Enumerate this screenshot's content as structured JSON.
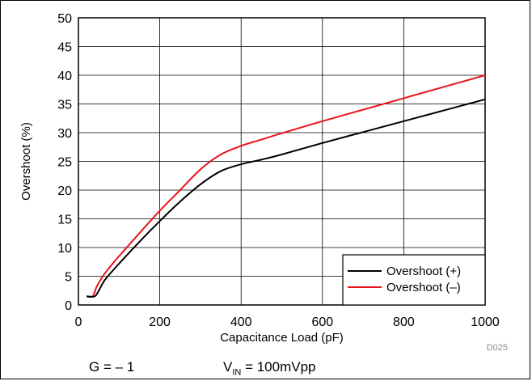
{
  "chart_data": {
    "type": "line",
    "xlabel": "Capacitance Load (pF)",
    "ylabel": "Overshoot (%)",
    "xlim": [
      0,
      1000
    ],
    "ylim": [
      0,
      50
    ],
    "xticks": [
      0,
      200,
      400,
      600,
      800,
      1000
    ],
    "yticks": [
      0,
      5,
      10,
      15,
      20,
      25,
      30,
      35,
      40,
      45,
      50
    ],
    "grid": true,
    "legend_position": "bottom-right",
    "series": [
      {
        "name": "Overshoot (+)",
        "color": "#000000",
        "x": [
          20,
          40,
          50,
          60,
          70,
          100,
          150,
          200,
          250,
          300,
          350,
          400,
          450,
          500,
          600,
          700,
          800,
          900,
          1000
        ],
        "y": [
          1.5,
          1.5,
          2.5,
          3.8,
          4.8,
          7.2,
          11,
          14.6,
          18,
          21,
          23.3,
          24.5,
          25.3,
          26.2,
          28.2,
          30.1,
          32,
          33.9,
          35.8
        ]
      },
      {
        "name": "Overshoot (–)",
        "color": "#e8141b",
        "x": [
          20,
          35,
          45,
          60,
          75,
          100,
          150,
          200,
          250,
          300,
          350,
          400,
          450,
          500,
          600,
          700,
          800,
          900,
          1000
        ],
        "y": [
          1.5,
          1.5,
          3.2,
          5.0,
          6.4,
          8.5,
          12.5,
          16.4,
          20,
          23.6,
          26.2,
          27.7,
          28.8,
          29.9,
          32,
          34,
          36,
          38,
          40
        ]
      }
    ],
    "code": "D025"
  },
  "conditions": {
    "gain": "G = – 1",
    "vin_prefix": "V",
    "vin_sub": "IN",
    "vin_suffix": " = 100mVpp"
  }
}
